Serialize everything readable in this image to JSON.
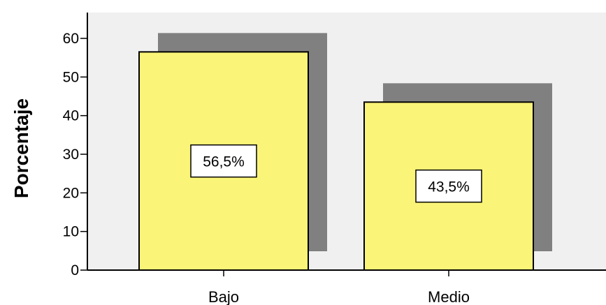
{
  "chart_data": {
    "type": "bar",
    "categories": [
      "Bajo",
      "Medio"
    ],
    "values": [
      56.5,
      43.5
    ],
    "data_labels": [
      "56,5%",
      "43,5%"
    ],
    "title": "",
    "xlabel": "",
    "ylabel": "Porcentaje",
    "ylim": [
      0,
      65
    ],
    "yticks": [
      "0",
      "10",
      "20",
      "30",
      "40",
      "50",
      "60"
    ],
    "grid": false,
    "bar_style": "3d-shadow",
    "colors": {
      "plot_background": "#f0f0f0",
      "bar_fill": "#faf478",
      "bar_shadow": "#808080",
      "bar_edge": "#000000",
      "label_box": "#ffffff"
    }
  }
}
